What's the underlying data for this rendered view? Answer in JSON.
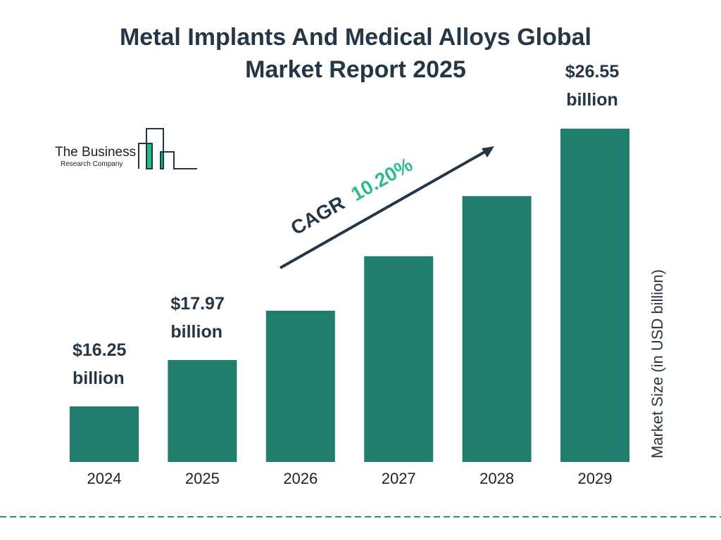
{
  "chart_data": {
    "type": "bar",
    "title": "Metal Implants And Medical Alloys Global Market Report 2025",
    "title_lines": [
      "Metal Implants And Medical Alloys Global",
      "Market Report 2025"
    ],
    "categories": [
      "2024",
      "2025",
      "2026",
      "2027",
      "2028",
      "2029"
    ],
    "values": [
      16.25,
      17.97,
      19.8,
      21.82,
      24.05,
      26.55
    ],
    "data_labels": [
      [
        "$16.25",
        "billion"
      ],
      [
        "$17.97",
        "billion"
      ],
      null,
      null,
      null,
      [
        "$26.55",
        "billion"
      ]
    ],
    "ylabel": "Market Size (in USD billion)",
    "xlabel": "",
    "annotation": {
      "prefix": "CAGR",
      "value": "10.20%"
    },
    "grid": false,
    "colors": {
      "bar": "#217d6d",
      "title": "#253746",
      "cagr": "#2ebd8a",
      "dash": "#2a8c84"
    }
  },
  "logo": {
    "line1": "The Business",
    "line2": "Research Company"
  }
}
